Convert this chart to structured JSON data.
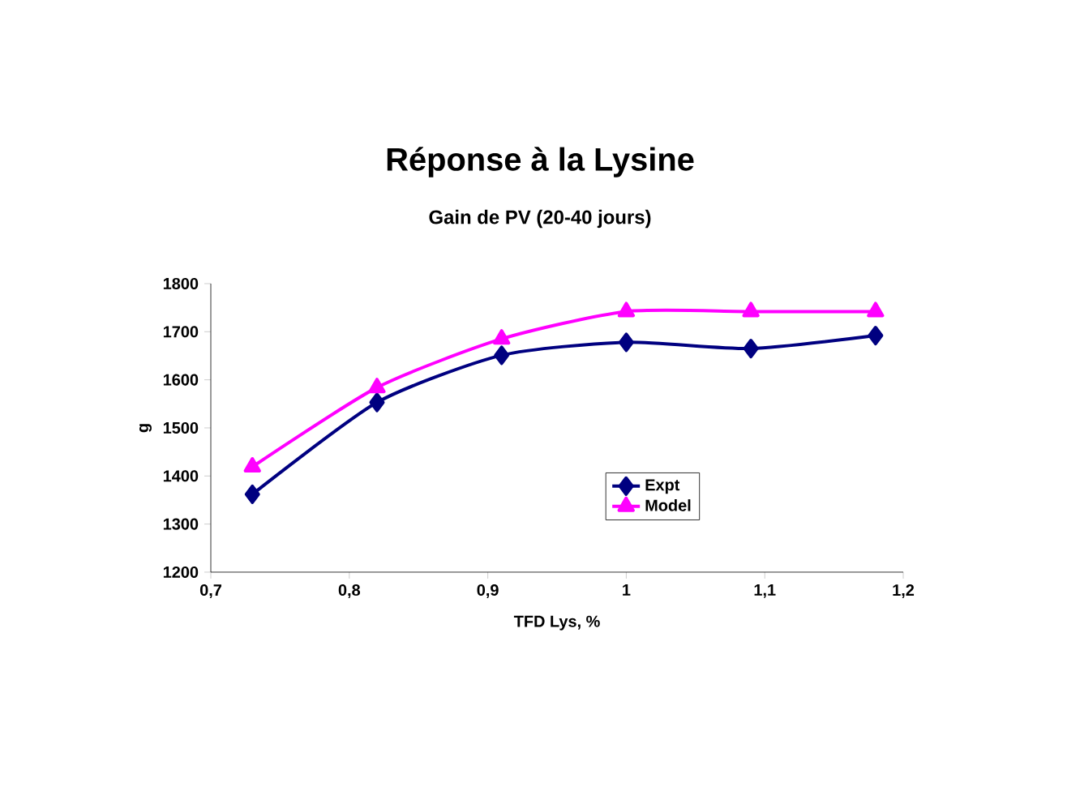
{
  "chart_data": {
    "type": "line",
    "title": "Réponse à la Lysine",
    "subtitle": "Gain de PV (20-40 jours)",
    "xlabel": "TFD Lys, %",
    "ylabel": "g",
    "x": [
      0.73,
      0.82,
      0.91,
      1.0,
      1.09,
      1.18
    ],
    "series": [
      {
        "name": "Expt",
        "color": "#000080",
        "marker": "diamond",
        "values": [
          1362,
          1553,
          1651,
          1678,
          1665,
          1692
        ]
      },
      {
        "name": "Model",
        "color": "#ff00ff",
        "marker": "triangle",
        "values": [
          1419,
          1584,
          1685,
          1742,
          1742,
          1742
        ]
      }
    ],
    "xlim": [
      0.7,
      1.2
    ],
    "xticks": [
      {
        "value": 0.7,
        "label": "0,7"
      },
      {
        "value": 0.8,
        "label": "0,8"
      },
      {
        "value": 0.9,
        "label": "0,9"
      },
      {
        "value": 1,
        "label": "1"
      },
      {
        "value": 1.1,
        "label": "1,1"
      },
      {
        "value": 1.2,
        "label": "1,2"
      }
    ],
    "ylim": [
      1200,
      1800
    ],
    "yticks": [
      1200,
      1300,
      1400,
      1500,
      1600,
      1700,
      1800
    ],
    "grid": false,
    "legend": "center"
  }
}
